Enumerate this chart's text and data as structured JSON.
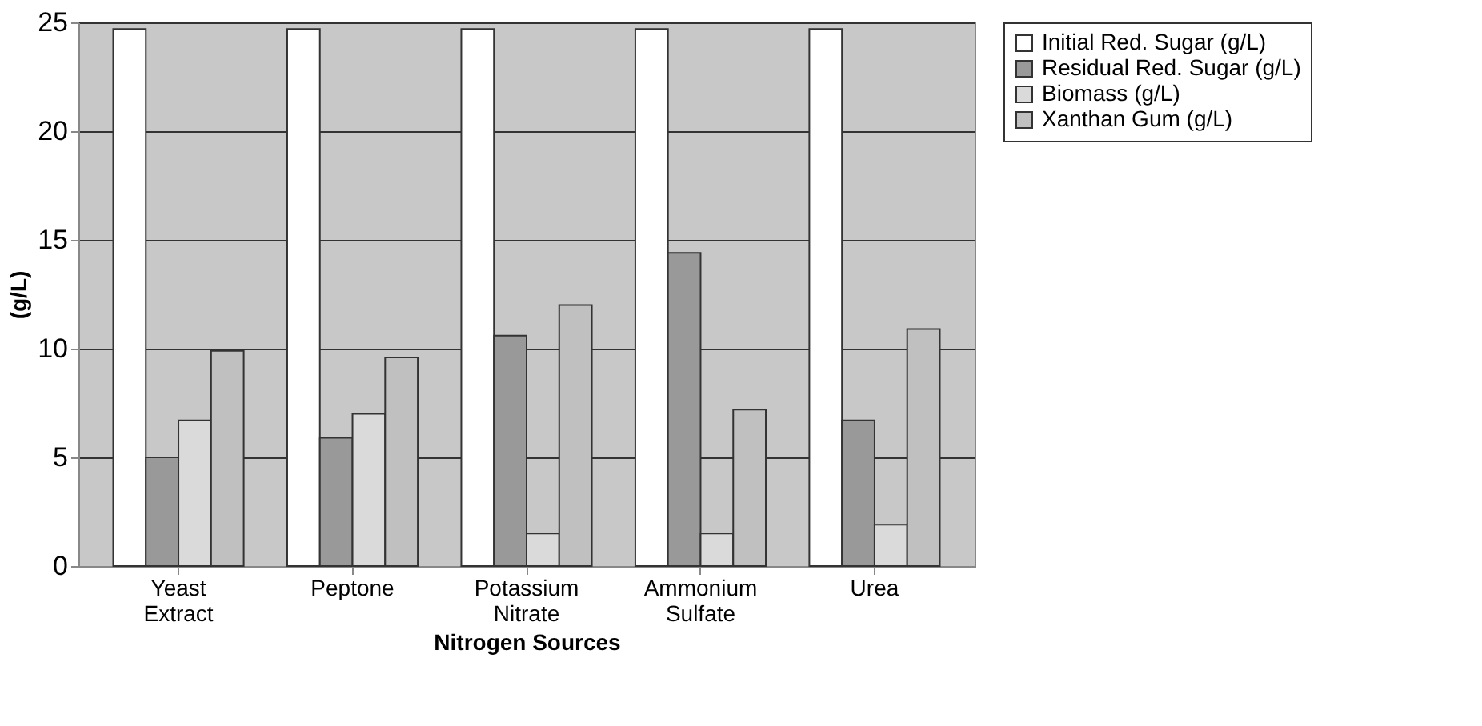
{
  "chart_data": {
    "type": "bar",
    "xlabel": "Nitrogen Sources",
    "ylabel": "(g/L)",
    "categories": [
      "Yeast Extract",
      "Peptone",
      "Potassium Nitrate",
      "Ammonium Sulfate",
      "Urea"
    ],
    "series": [
      {
        "name": "Initial Red. Sugar (g/L)",
        "color": "#ffffff",
        "values": [
          24.7,
          24.7,
          24.7,
          24.7,
          24.7
        ]
      },
      {
        "name": "Residual Red. Sugar (g/L)",
        "color": "#999999",
        "values": [
          5.0,
          5.9,
          10.6,
          14.4,
          6.7
        ]
      },
      {
        "name": "Biomass (g/L)",
        "color": "#dadada",
        "values": [
          6.7,
          7.0,
          1.5,
          1.5,
          1.9
        ]
      },
      {
        "name": "Xanthan Gum (g/L)",
        "color": "#c0c0c0",
        "values": [
          9.9,
          9.6,
          12.0,
          7.2,
          10.9
        ]
      }
    ],
    "ylim": [
      0,
      25
    ],
    "yticks": [
      0,
      5,
      10,
      15,
      20,
      25
    ],
    "grid": "y",
    "legend": "right"
  }
}
